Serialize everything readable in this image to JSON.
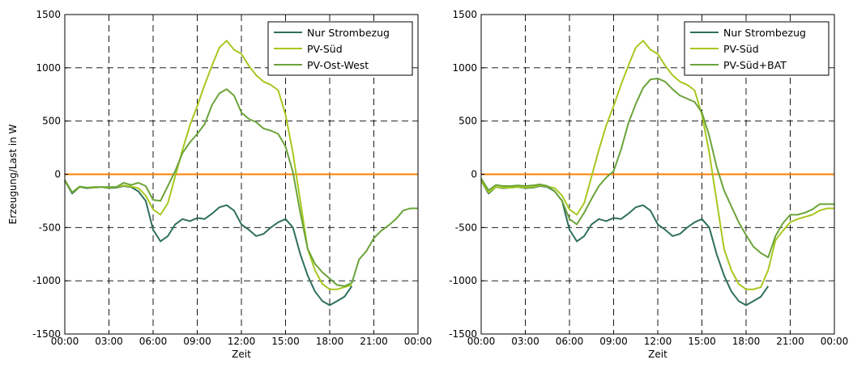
{
  "chart_data": [
    {
      "type": "line",
      "xlabel": "Zeit",
      "ylabel": "Erzeugung/Last in W",
      "ylim": [
        -1500,
        1500
      ],
      "xlim": [
        0,
        24
      ],
      "x_ticks": [
        "00:00",
        "03:00",
        "06:00",
        "09:00",
        "12:00",
        "15:00",
        "18:00",
        "21:00",
        "00:00"
      ],
      "y_ticks": [
        "1500",
        "1000",
        "500",
        "0",
        "-500",
        "-1000",
        "-1500"
      ],
      "grid": "dashed",
      "legend_position": "top-right",
      "zero_line_color": "#ff7f00",
      "series": [
        {
          "name": "Nur Strombezug",
          "color": "#2f6f5f",
          "points": [
            [
              0,
              -60
            ],
            [
              0.5,
              -180
            ],
            [
              1,
              -120
            ],
            [
              1.5,
              -130
            ],
            [
              2,
              -125
            ],
            [
              2.5,
              -120
            ],
            [
              3,
              -130
            ],
            [
              3.5,
              -125
            ],
            [
              4,
              -110
            ],
            [
              4.5,
              -120
            ],
            [
              5,
              -160
            ],
            [
              5.5,
              -250
            ],
            [
              6,
              -520
            ],
            [
              6.5,
              -630
            ],
            [
              7,
              -580
            ],
            [
              7.5,
              -470
            ],
            [
              8,
              -420
            ],
            [
              8.5,
              -440
            ],
            [
              9,
              -410
            ],
            [
              9.5,
              -420
            ],
            [
              10,
              -370
            ],
            [
              10.5,
              -310
            ],
            [
              11,
              -290
            ],
            [
              11.5,
              -340
            ],
            [
              12,
              -470
            ],
            [
              12.5,
              -520
            ],
            [
              13,
              -580
            ],
            [
              13.5,
              -560
            ],
            [
              14,
              -500
            ],
            [
              14.5,
              -450
            ],
            [
              15,
              -420
            ],
            [
              15.5,
              -500
            ],
            [
              16,
              -750
            ],
            [
              16.5,
              -950
            ],
            [
              17,
              -1100
            ],
            [
              17.5,
              -1190
            ],
            [
              18,
              -1230
            ],
            [
              18.5,
              -1190
            ],
            [
              19,
              -1150
            ],
            [
              19.5,
              -1050
            ]
          ]
        },
        {
          "name": "PV-Süd",
          "color": "#a6c81f",
          "points": [
            [
              0,
              -60
            ],
            [
              0.5,
              -170
            ],
            [
              1,
              -120
            ],
            [
              1.5,
              -125
            ],
            [
              2,
              -125
            ],
            [
              2.5,
              -120
            ],
            [
              3,
              -125
            ],
            [
              3.5,
              -120
            ],
            [
              4,
              -105
            ],
            [
              4.5,
              -115
            ],
            [
              5,
              -130
            ],
            [
              5.5,
              -200
            ],
            [
              6,
              -330
            ],
            [
              6.5,
              -380
            ],
            [
              7,
              -270
            ],
            [
              7.5,
              -20
            ],
            [
              8,
              230
            ],
            [
              8.5,
              460
            ],
            [
              9,
              640
            ],
            [
              9.5,
              840
            ],
            [
              10,
              1020
            ],
            [
              10.5,
              1190
            ],
            [
              11,
              1255
            ],
            [
              11.5,
              1170
            ],
            [
              12,
              1130
            ],
            [
              12.5,
              1020
            ],
            [
              13,
              930
            ],
            [
              13.5,
              870
            ],
            [
              14,
              840
            ],
            [
              14.5,
              790
            ],
            [
              15,
              560
            ],
            [
              15.5,
              200
            ],
            [
              16,
              -250
            ],
            [
              16.5,
              -700
            ],
            [
              17,
              -900
            ],
            [
              17.5,
              -1030
            ],
            [
              18,
              -1080
            ],
            [
              18.5,
              -1080
            ],
            [
              19,
              -1060
            ],
            [
              19.5,
              -1040
            ]
          ]
        },
        {
          "name": "PV-Ost-West",
          "color": "#6ba43a",
          "points": [
            [
              0,
              -55
            ],
            [
              0.5,
              -170
            ],
            [
              1,
              -115
            ],
            [
              1.5,
              -125
            ],
            [
              2,
              -120
            ],
            [
              2.5,
              -120
            ],
            [
              3,
              -120
            ],
            [
              3.5,
              -120
            ],
            [
              4,
              -80
            ],
            [
              4.5,
              -100
            ],
            [
              5,
              -80
            ],
            [
              5.5,
              -110
            ],
            [
              6,
              -240
            ],
            [
              6.5,
              -250
            ],
            [
              7,
              -110
            ],
            [
              7.5,
              30
            ],
            [
              8,
              200
            ],
            [
              8.5,
              300
            ],
            [
              9,
              380
            ],
            [
              9.5,
              470
            ],
            [
              10,
              650
            ],
            [
              10.5,
              760
            ],
            [
              11,
              800
            ],
            [
              11.5,
              740
            ],
            [
              12,
              580
            ],
            [
              12.5,
              520
            ],
            [
              13,
              490
            ],
            [
              13.5,
              430
            ],
            [
              14,
              410
            ],
            [
              14.5,
              380
            ],
            [
              15,
              260
            ],
            [
              15.5,
              20
            ],
            [
              16,
              -360
            ],
            [
              16.5,
              -700
            ],
            [
              17,
              -840
            ],
            [
              17.5,
              -920
            ],
            [
              18,
              -980
            ],
            [
              18.5,
              -1040
            ],
            [
              19,
              -1050
            ],
            [
              19.5,
              -1020
            ],
            [
              20,
              -800
            ],
            [
              20.5,
              -720
            ],
            [
              21,
              -600
            ],
            [
              21.5,
              -530
            ],
            [
              22,
              -480
            ],
            [
              22.5,
              -420
            ],
            [
              23,
              -340
            ],
            [
              23.5,
              -320
            ],
            [
              24,
              -320
            ]
          ]
        }
      ]
    },
    {
      "type": "line",
      "xlabel": "Zeit",
      "ylabel": "",
      "ylim": [
        -1500,
        1500
      ],
      "xlim": [
        0,
        24
      ],
      "x_ticks": [
        "00:00",
        "03:00",
        "06:00",
        "09:00",
        "12:00",
        "15:00",
        "18:00",
        "21:00",
        "00:00"
      ],
      "y_ticks": [
        "1500",
        "1000",
        "500",
        "0",
        "-500",
        "-1000",
        "-1500"
      ],
      "grid": "dashed",
      "legend_position": "top-right",
      "zero_line_color": "#ff7f00",
      "series": [
        {
          "name": "Nur Strombezug",
          "color": "#2f6f5f",
          "points": [
            [
              0,
              -60
            ],
            [
              0.5,
              -180
            ],
            [
              1,
              -120
            ],
            [
              1.5,
              -130
            ],
            [
              2,
              -125
            ],
            [
              2.5,
              -120
            ],
            [
              3,
              -130
            ],
            [
              3.5,
              -125
            ],
            [
              4,
              -110
            ],
            [
              4.5,
              -120
            ],
            [
              5,
              -160
            ],
            [
              5.5,
              -250
            ],
            [
              6,
              -520
            ],
            [
              6.5,
              -630
            ],
            [
              7,
              -580
            ],
            [
              7.5,
              -470
            ],
            [
              8,
              -420
            ],
            [
              8.5,
              -440
            ],
            [
              9,
              -410
            ],
            [
              9.5,
              -420
            ],
            [
              10,
              -370
            ],
            [
              10.5,
              -310
            ],
            [
              11,
              -290
            ],
            [
              11.5,
              -340
            ],
            [
              12,
              -470
            ],
            [
              12.5,
              -520
            ],
            [
              13,
              -580
            ],
            [
              13.5,
              -560
            ],
            [
              14,
              -500
            ],
            [
              14.5,
              -450
            ],
            [
              15,
              -420
            ],
            [
              15.5,
              -500
            ],
            [
              16,
              -750
            ],
            [
              16.5,
              -950
            ],
            [
              17,
              -1100
            ],
            [
              17.5,
              -1190
            ],
            [
              18,
              -1230
            ],
            [
              18.5,
              -1190
            ],
            [
              19,
              -1150
            ],
            [
              19.5,
              -1050
            ]
          ]
        },
        {
          "name": "PV-Süd",
          "color": "#a6c81f",
          "points": [
            [
              0,
              -60
            ],
            [
              0.5,
              -170
            ],
            [
              1,
              -120
            ],
            [
              1.5,
              -125
            ],
            [
              2,
              -125
            ],
            [
              2.5,
              -120
            ],
            [
              3,
              -125
            ],
            [
              3.5,
              -120
            ],
            [
              4,
              -105
            ],
            [
              4.5,
              -115
            ],
            [
              5,
              -130
            ],
            [
              5.5,
              -200
            ],
            [
              6,
              -330
            ],
            [
              6.5,
              -380
            ],
            [
              7,
              -270
            ],
            [
              7.5,
              -20
            ],
            [
              8,
              230
            ],
            [
              8.5,
              460
            ],
            [
              9,
              640
            ],
            [
              9.5,
              840
            ],
            [
              10,
              1020
            ],
            [
              10.5,
              1190
            ],
            [
              11,
              1255
            ],
            [
              11.5,
              1170
            ],
            [
              12,
              1130
            ],
            [
              12.5,
              1020
            ],
            [
              13,
              930
            ],
            [
              13.5,
              870
            ],
            [
              14,
              840
            ],
            [
              14.5,
              790
            ],
            [
              15,
              560
            ],
            [
              15.5,
              200
            ],
            [
              16,
              -250
            ],
            [
              16.5,
              -700
            ],
            [
              17,
              -900
            ],
            [
              17.5,
              -1030
            ],
            [
              18,
              -1080
            ],
            [
              18.5,
              -1080
            ],
            [
              19,
              -1060
            ],
            [
              19.5,
              -900
            ],
            [
              20,
              -620
            ],
            [
              20.5,
              -530
            ],
            [
              21,
              -450
            ],
            [
              21.5,
              -420
            ],
            [
              22,
              -400
            ],
            [
              22.5,
              -380
            ],
            [
              23,
              -340
            ],
            [
              23.5,
              -320
            ],
            [
              24,
              -320
            ]
          ]
        },
        {
          "name": "PV-Süd+BAT",
          "color": "#6ba43a",
          "points": [
            [
              0,
              -40
            ],
            [
              0.5,
              -150
            ],
            [
              1,
              -100
            ],
            [
              1.5,
              -110
            ],
            [
              2,
              -110
            ],
            [
              2.5,
              -105
            ],
            [
              3,
              -110
            ],
            [
              3.5,
              -105
            ],
            [
              4,
              -95
            ],
            [
              4.5,
              -110
            ],
            [
              5,
              -160
            ],
            [
              5.5,
              -250
            ],
            [
              6,
              -420
            ],
            [
              6.5,
              -470
            ],
            [
              7,
              -360
            ],
            [
              7.5,
              -230
            ],
            [
              8,
              -110
            ],
            [
              8.5,
              -30
            ],
            [
              9,
              30
            ],
            [
              9.5,
              230
            ],
            [
              10,
              480
            ],
            [
              10.5,
              660
            ],
            [
              11,
              810
            ],
            [
              11.5,
              890
            ],
            [
              12,
              900
            ],
            [
              12.5,
              870
            ],
            [
              13,
              800
            ],
            [
              13.5,
              740
            ],
            [
              14,
              710
            ],
            [
              14.5,
              680
            ],
            [
              15,
              580
            ],
            [
              15.5,
              360
            ],
            [
              16,
              70
            ],
            [
              16.5,
              -150
            ],
            [
              17,
              -300
            ],
            [
              17.5,
              -450
            ],
            [
              18,
              -570
            ],
            [
              18.5,
              -680
            ],
            [
              19,
              -740
            ],
            [
              19.5,
              -780
            ],
            [
              20,
              -580
            ],
            [
              20.5,
              -460
            ],
            [
              21,
              -380
            ],
            [
              21.5,
              -380
            ],
            [
              22,
              -360
            ],
            [
              22.5,
              -330
            ],
            [
              23,
              -280
            ],
            [
              23.5,
              -280
            ],
            [
              24,
              -280
            ]
          ]
        }
      ]
    }
  ]
}
